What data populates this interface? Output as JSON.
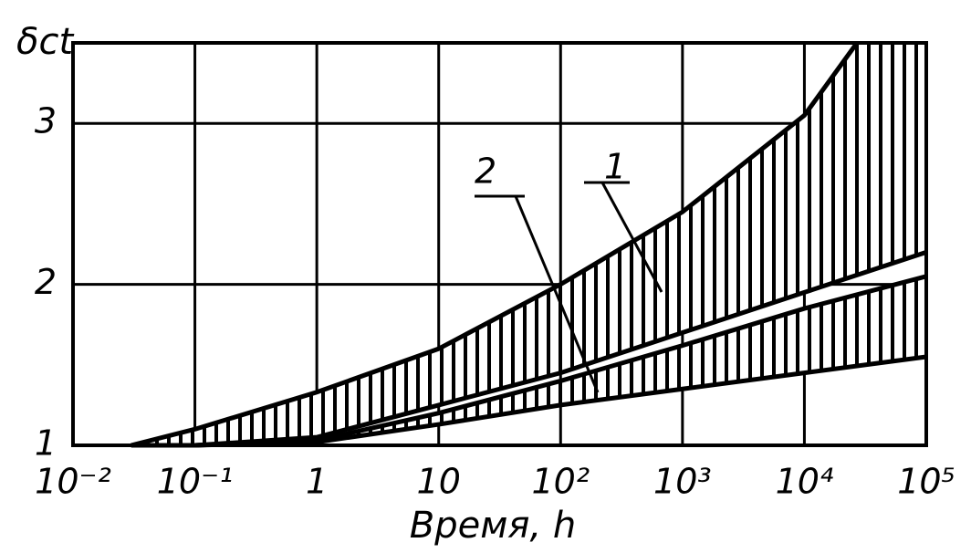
{
  "chart_data": {
    "type": "band",
    "ylabel": "δct",
    "xlabel": "Время, h",
    "xscale": "log",
    "grid": true,
    "color": "#000000",
    "xlim": [
      0.01,
      100000
    ],
    "ylim": [
      1,
      3.5
    ],
    "xticks": [
      {
        "value": 0.01,
        "label": "10⁻²"
      },
      {
        "value": 0.1,
        "label": "10⁻¹"
      },
      1,
      10,
      {
        "value": 100,
        "label": "10²"
      },
      {
        "value": 1000,
        "label": "10³"
      },
      {
        "value": 10000,
        "label": "10⁴"
      },
      {
        "value": 100000,
        "label": "10⁵"
      }
    ],
    "yticks": [
      1,
      2,
      3
    ],
    "bands": [
      {
        "label": "1",
        "upper": {
          "x": [
            0.03,
            0.1,
            1,
            10,
            100,
            1000,
            10000,
            27000
          ],
          "values": [
            1,
            1.1,
            1.33,
            1.6,
            2.0,
            2.45,
            3.05,
            3.5
          ]
        },
        "lower": {
          "x": [
            0.03,
            0.1,
            1,
            10,
            100,
            1000,
            10000,
            100000
          ],
          "values": [
            1,
            1.0,
            1.05,
            1.25,
            1.45,
            1.7,
            1.95,
            2.2
          ]
        }
      },
      {
        "label": "2",
        "upper": {
          "x": [
            0.1,
            1,
            10,
            100,
            1000,
            10000,
            100000
          ],
          "values": [
            1.0,
            1.03,
            1.2,
            1.4,
            1.62,
            1.85,
            2.05
          ]
        },
        "lower": {
          "x": [
            0.1,
            1,
            10,
            100,
            1000,
            10000,
            100000
          ],
          "values": [
            1.0,
            1.02,
            1.13,
            1.25,
            1.35,
            1.45,
            1.55
          ]
        }
      }
    ]
  }
}
